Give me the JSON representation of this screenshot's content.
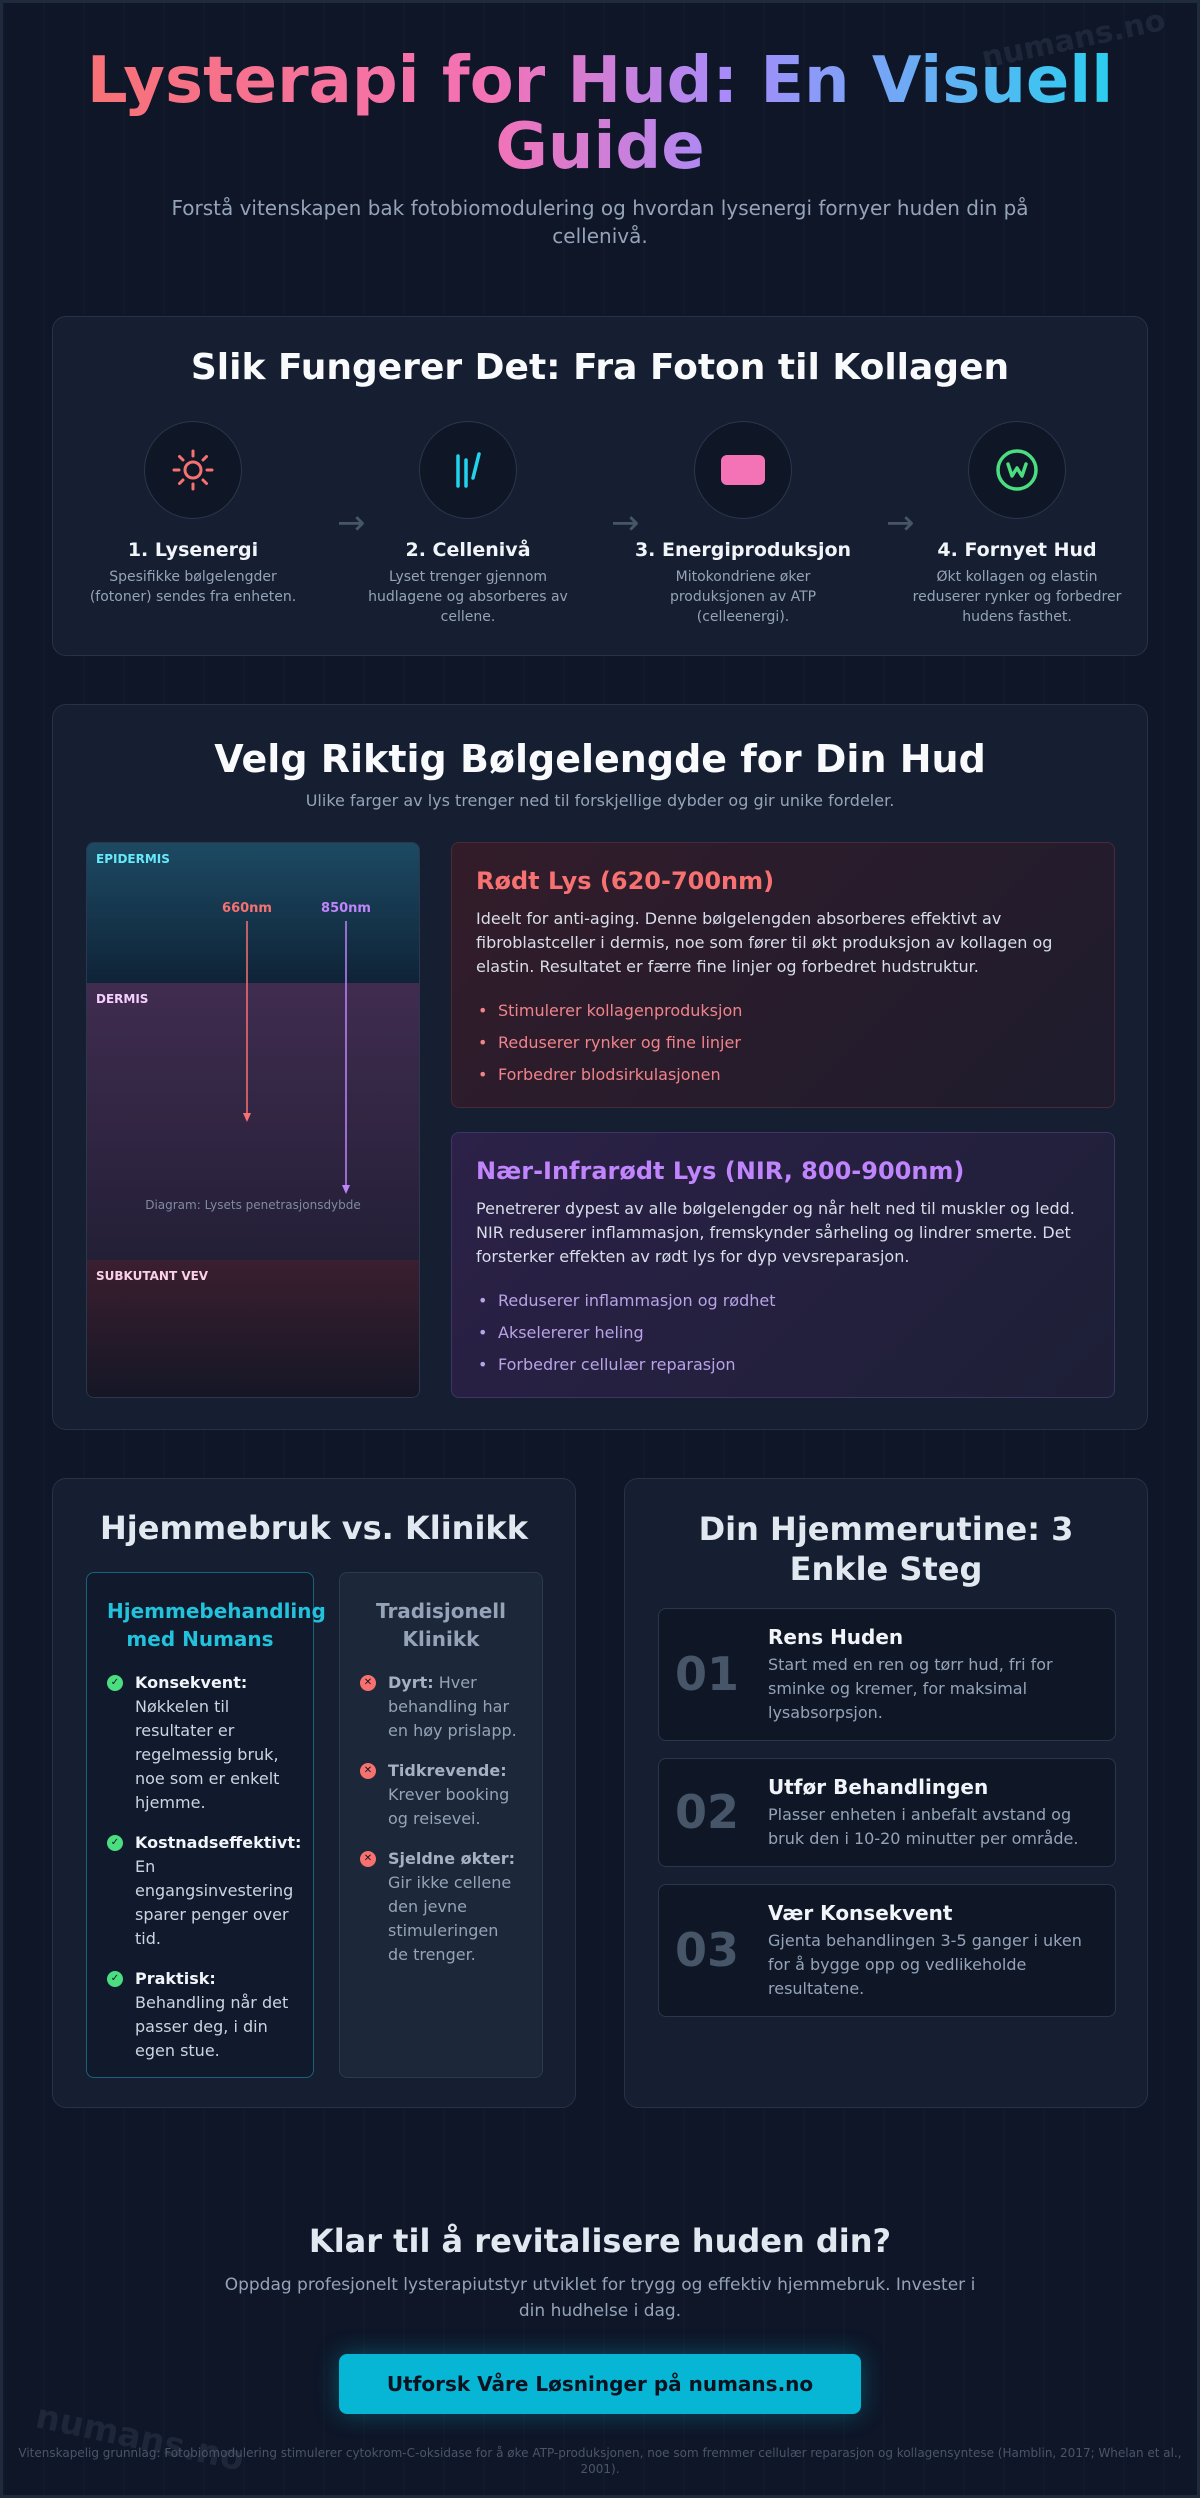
{
  "watermark": "numans.no",
  "hero": {
    "title": "Lysterapi for Hud: En Visuell Guide",
    "subtitle": "Forstå vitenskapen bak fotobiomodulering og hvordan lysenergi fornyer huden din på cellenivå."
  },
  "how": {
    "title": "Slik Fungerer Det: Fra Foton til Kollagen",
    "steps": [
      {
        "icon": "sun-icon",
        "color": "#f87171",
        "title": "1. Lysenergi",
        "desc": "Spesifikke bølgelengder (fotoner) sendes fra enheten."
      },
      {
        "icon": "light-rays-icon",
        "color": "#22d3ee",
        "title": "2. Cellenivå",
        "desc": "Lyset trenger gjennom hudlagene og absorberes av cellene."
      },
      {
        "icon": "battery-icon",
        "color": "#f472b6",
        "title": "3. Energiproduksjon",
        "desc": "Mitokondriene øker produksjonen av ATP (celleenergi)."
      },
      {
        "icon": "renewal-icon",
        "color": "#4ade80",
        "title": "4. Fornyet Hud",
        "desc": "Økt kollagen og elastin reduserer rynker og forbedrer hudens fasthet."
      }
    ],
    "arrow": "→"
  },
  "wavelength": {
    "title": "Velg Riktig Bølgelengde for Din Hud",
    "subtitle": "Ulike farger av lys trenger ned til forskjellige dybder og gir unike fordeler.",
    "diagram": {
      "layers": [
        "EPIDERMIS",
        "DERMIS",
        "SUBKUTANT VEV"
      ],
      "beams": [
        {
          "label": "660nm",
          "color": "#f87171"
        },
        {
          "label": "850nm",
          "color": "#c084fc"
        }
      ],
      "caption": "Diagram: Lysets penetrasjonsdybde"
    },
    "red": {
      "title": "Rødt Lys (620-700nm)",
      "desc": "Ideelt for anti-aging. Denne bølgelengden absorberes effektivt av fibroblastceller i dermis, noe som fører til økt produksjon av kollagen og elastin. Resultatet er færre fine linjer og forbedret hudstruktur.",
      "items": [
        "Stimulerer kollagenproduksjon",
        "Reduserer rynker og fine linjer",
        "Forbedrer blodsirkulasjonen"
      ]
    },
    "nir": {
      "title": "Nær-Infrarødt Lys (NIR, 800-900nm)",
      "desc": "Penetrerer dypest av alle bølgelengder og når helt ned til muskler og ledd. NIR reduserer inflammasjon, fremskynder sårheling og lindrer smerte. Det forsterker effekten av rødt lys for dyp vevsreparasjon.",
      "items": [
        "Reduserer inflammasjon og rødhet",
        "Akselererer heling",
        "Forbedrer cellulær reparasjon"
      ]
    }
  },
  "compare": {
    "title": "Hjemmebruk vs. Klinikk",
    "home": {
      "title": "Hjemmebehandling med Numans",
      "items": [
        {
          "label": "Konsekvent:",
          "text": " Nøkkelen til resultater er regelmessig bruk, noe som er enkelt hjemme."
        },
        {
          "label": "Kostnadseffektivt:",
          "text": " En engangsinvestering sparer penger over tid."
        },
        {
          "label": "Praktisk:",
          "text": " Behandling når det passer deg, i din egen stue."
        }
      ]
    },
    "clinic": {
      "title": "Tradisjonell Klinikk",
      "items": [
        {
          "label": "Dyrt:",
          "text": " Hver behandling har en høy prislapp."
        },
        {
          "label": "Tidkrevende:",
          "text": " Krever booking og reisevei."
        },
        {
          "label": "Sjeldne økter:",
          "text": " Gir ikke cellene den jevne stimuleringen de trenger."
        }
      ]
    }
  },
  "routine": {
    "title": "Din Hjemmerutine: 3 Enkle Steg",
    "steps": [
      {
        "num": "01",
        "title": "Rens Huden",
        "desc": "Start med en ren og tørr hud, fri for sminke og kremer, for maksimal lysabsorpsjon."
      },
      {
        "num": "02",
        "title": "Utfør Behandlingen",
        "desc": "Plasser enheten i anbefalt avstand og bruk den i 10-20 minutter per område."
      },
      {
        "num": "03",
        "title": "Vær Konsekvent",
        "desc": "Gjenta behandlingen 3-5 ganger i uken for å bygge opp og vedlikeholde resultatene."
      }
    ]
  },
  "cta": {
    "title": "Klar til å revitalisere huden din?",
    "subtitle": "Oppdag profesjonelt lysterapiutstyr utviklet for trygg og effektiv hjemmebruk. Invester i din hudhelse i dag.",
    "button": "Utforsk Våre Løsninger på numans.no"
  },
  "footnote": "Vitenskapelig grunnlag: Fotobiomodulering stimulerer cytokrom-C-oksidase for å øke ATP-produksjonen, noe som fremmer cellulær reparasjon og kollagensyntese (Hamblin, 2017; Whelan et al., 2001)."
}
